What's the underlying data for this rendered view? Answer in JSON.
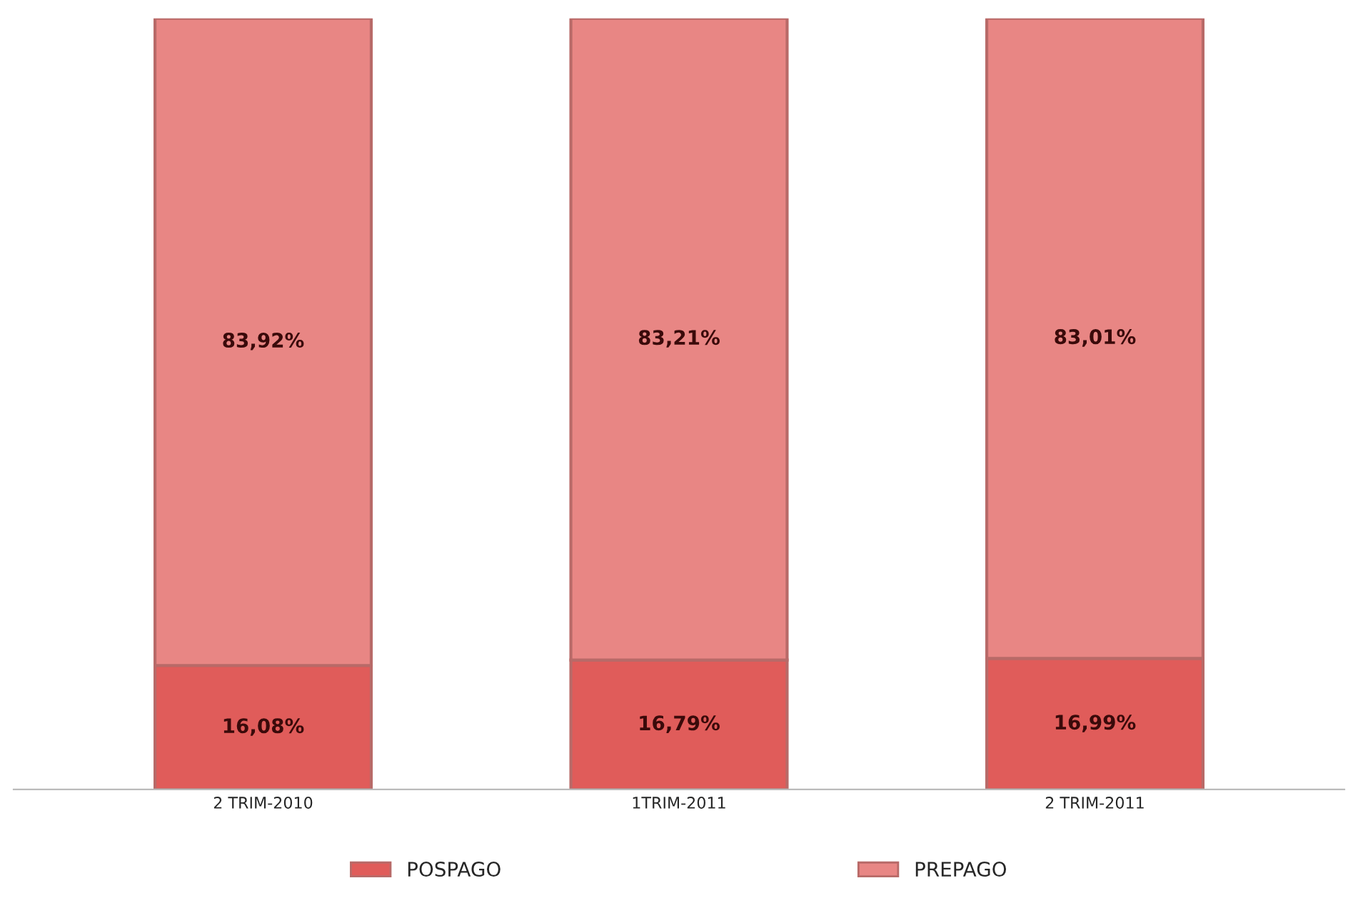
{
  "chart_data": {
    "type": "bar",
    "stacked": true,
    "categories": [
      "2 TRIM-2010",
      "1TRIM-2011",
      "2 TRIM-2011"
    ],
    "series": [
      {
        "name": "POSPAGO",
        "color": "#e05c5a",
        "values": [
          16.08,
          16.79,
          16.99
        ],
        "value_labels": [
          "16,08%",
          "16,79%",
          "16,99%"
        ]
      },
      {
        "name": "PREPAGO",
        "color": "#e88684",
        "values": [
          83.92,
          83.21,
          83.01
        ],
        "value_labels": [
          "83,92%",
          "83,21%",
          "83,01%"
        ]
      }
    ],
    "ylim": [
      0,
      100
    ],
    "tick_labels": "x",
    "grid": false,
    "legend": "bottom"
  }
}
